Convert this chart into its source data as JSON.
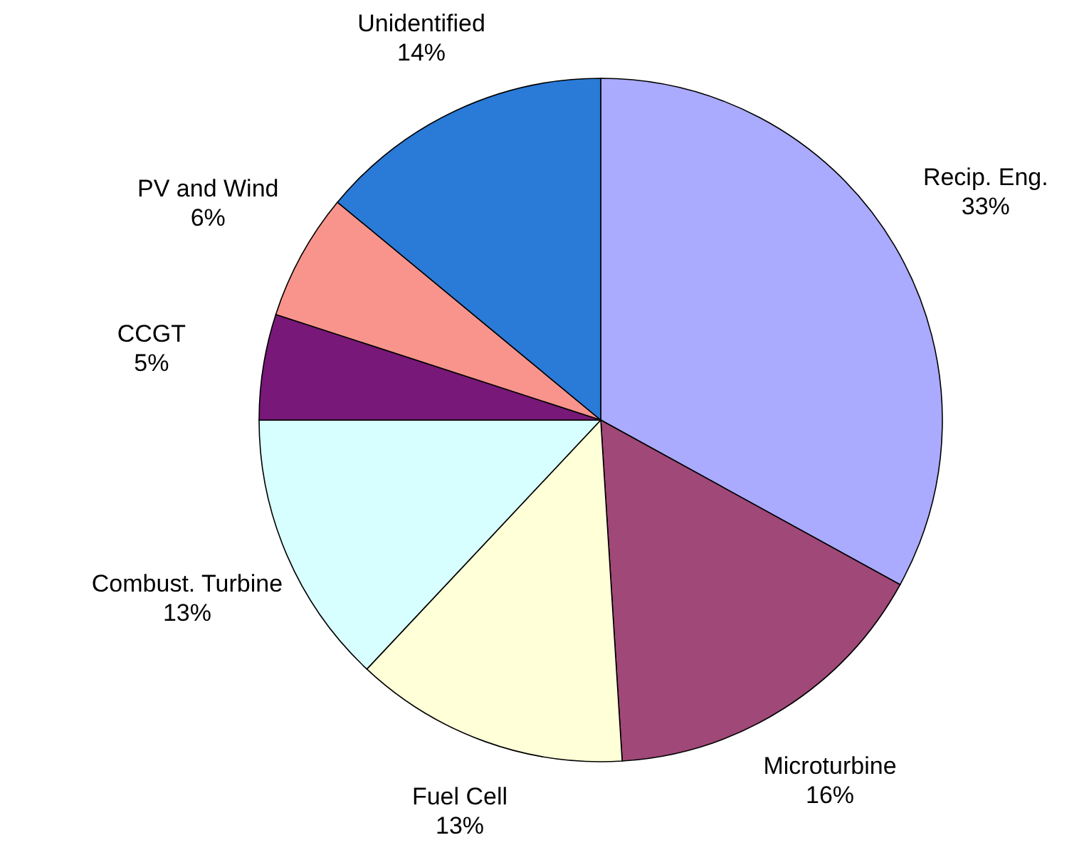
{
  "chart_data": {
    "type": "pie",
    "categories": [
      "Recip. Eng.",
      "Microturbine",
      "Fuel Cell",
      "Combust. Turbine",
      "CCGT",
      "PV and Wind",
      "Unidentified"
    ],
    "values": [
      33,
      16,
      13,
      13,
      5,
      6,
      14
    ],
    "value_labels": [
      "33%",
      "16%",
      "13%",
      "13%",
      "5%",
      "6%",
      "14%"
    ],
    "colors": [
      "#aaaaff",
      "#a04878",
      "#ffffd8",
      "#d8ffff",
      "#781878",
      "#f8948c",
      "#2a7ad8"
    ]
  }
}
